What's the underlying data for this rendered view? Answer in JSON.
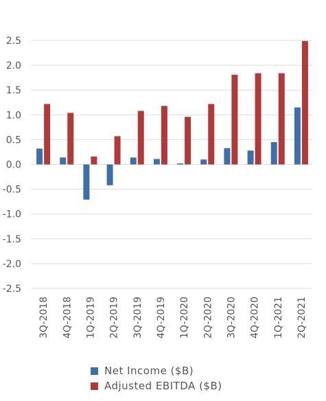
{
  "chart_data": {
    "type": "bar",
    "title": "",
    "xlabel": "",
    "ylabel": "",
    "categories": [
      "3Q-2018",
      "4Q-2018",
      "1Q-2019",
      "2Q-2019",
      "3Q-2019",
      "4Q-2019",
      "1Q-2020",
      "2Q-2020",
      "3Q-2020",
      "4Q-2020",
      "1Q-2021",
      "2Q-2021"
    ],
    "series": [
      {
        "name": "Net Income ($B)",
        "color": "#3f6fa8",
        "values": [
          0.32,
          0.14,
          -0.71,
          -0.42,
          0.14,
          0.11,
          0.02,
          0.1,
          0.33,
          0.28,
          0.45,
          1.15
        ]
      },
      {
        "name": "Adjusted EBITDA ($B)",
        "color": "#b03a39",
        "values": [
          1.22,
          1.04,
          0.16,
          0.57,
          1.08,
          1.18,
          0.96,
          1.22,
          1.81,
          1.84,
          1.84,
          2.49
        ]
      }
    ],
    "yticks": [
      "2.5",
      "2.0",
      "1.5",
      "1.0",
      "0.5",
      "0.0",
      "-0.5",
      "-1.0",
      "-1.5",
      "-2.0",
      "-2.5"
    ],
    "ylim": [
      -2.5,
      2.5
    ],
    "grid": true,
    "legend_position": "bottom"
  }
}
